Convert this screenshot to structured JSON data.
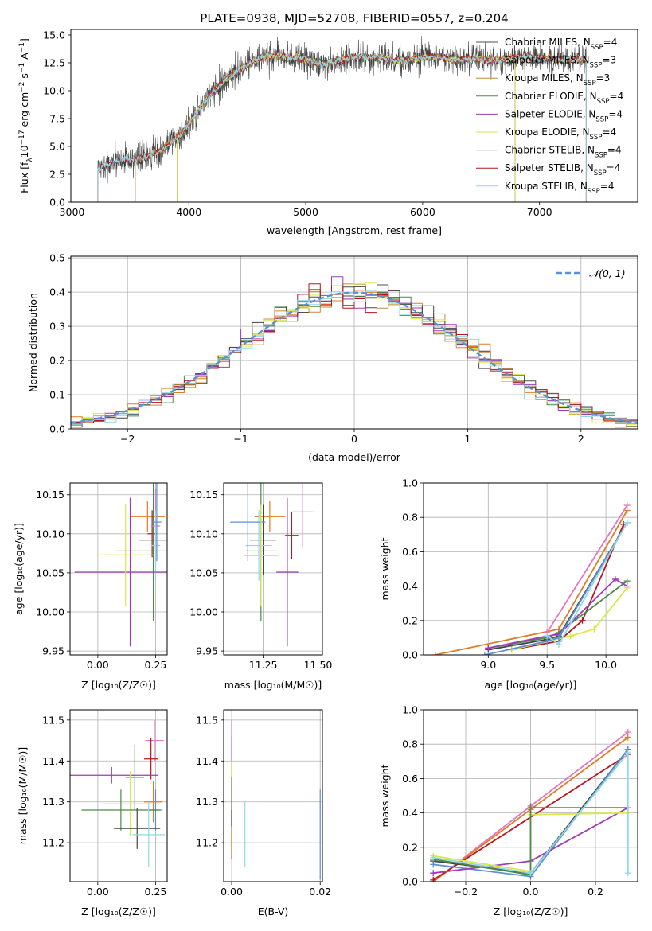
{
  "chart_data": [
    {
      "type": "line",
      "panel": "spectrum",
      "title": "PLATE=0938, MJD=52708, FIBERID=0557, z=0.204",
      "xlabel": "wavelength [Angstrom, rest frame]",
      "ylabel_parts": [
        "Flux [f",
        "λ",
        "10",
        "−17",
        " erg cm",
        "−2",
        " s",
        "−1",
        " A",
        "−1",
        "]"
      ],
      "xlim": [
        2990,
        7840
      ],
      "ylim": [
        0,
        15.5
      ],
      "xticks": [
        3000,
        4000,
        5000,
        6000,
        7000
      ],
      "yticks": [
        0.0,
        2.5,
        5.0,
        7.5,
        10.0,
        12.5,
        15.0
      ],
      "continuum": {
        "x": [
          3200,
          3250,
          3350,
          3450,
          3550,
          3650,
          3750,
          3850,
          3950,
          4050,
          4150,
          4250,
          4350,
          4450,
          4550,
          4650,
          4750,
          4850,
          4950,
          5050,
          5150,
          5250,
          5350,
          5450,
          5550,
          5650,
          5750,
          5850,
          5950,
          6050,
          6150,
          6250,
          6350,
          6450,
          6550,
          6650,
          6750,
          6850,
          6950,
          7050,
          7150,
          7250,
          7350,
          7450,
          7550
        ],
        "y": [
          2.5,
          3.2,
          3.6,
          3.9,
          3.8,
          4.1,
          4.6,
          5.4,
          6.3,
          7.8,
          9.2,
          10.4,
          11.3,
          12.0,
          12.6,
          13.1,
          13.2,
          13.0,
          12.9,
          12.6,
          12.4,
          12.6,
          12.9,
          13.1,
          13.0,
          13.0,
          12.7,
          12.7,
          12.9,
          13.0,
          13.0,
          12.8,
          12.8,
          12.9,
          12.7,
          12.7,
          12.9,
          13.0,
          13.0,
          12.9,
          12.8,
          12.8,
          12.8,
          12.8,
          12.9
        ]
      },
      "series": [
        {
          "name": "Chabrier MILES, N_SSP=4",
          "label": "Chabrier MILES, N",
          "sub": "SSP",
          "suffix": "=4",
          "color": "#4f4f4f",
          "x_start": 3540,
          "x_end": 7400
        },
        {
          "name": "Salpeter MILES, N_SSP=3",
          "label": "Salpeter MILES, N",
          "sub": "SSP",
          "suffix": "=3",
          "color": "#e07b20",
          "x_start": 3540,
          "x_end": 7400
        },
        {
          "name": "Kroupa MILES, N_SSP=3",
          "label": "Kroupa MILES, N",
          "sub": "SSP",
          "suffix": "=3",
          "color": "#c98a2f",
          "x_start": 3540,
          "x_end": 7400
        },
        {
          "name": "Chabrier ELODIE, N_SSP=4",
          "label": "Chabrier ELODIE, N",
          "sub": "SSP",
          "suffix": "=4",
          "color": "#4a8a4a",
          "x_start": 3900,
          "x_end": 6790
        },
        {
          "name": "Salpeter ELODIE, N_SSP=4",
          "label": "Salpeter ELODIE, N",
          "sub": "SSP",
          "suffix": "=4",
          "color": "#9d3cb5",
          "x_start": 3900,
          "x_end": 6790
        },
        {
          "name": "Kroupa ELODIE, N_SSP=4",
          "label": "Kroupa ELODIE, N",
          "sub": "SSP",
          "suffix": "=4",
          "color": "#d9e84a",
          "x_start": 3900,
          "x_end": 6790
        },
        {
          "name": "Chabrier STELIB, N_SSP=4",
          "label": "Chabrier STELIB, N",
          "sub": "SSP",
          "suffix": "=4",
          "color": "#444444",
          "x_start": 3220,
          "x_end": 7400
        },
        {
          "name": "Salpeter STELIB, N_SSP=4",
          "label": "Salpeter STELIB, N",
          "sub": "SSP",
          "suffix": "=4",
          "color": "#b8151c",
          "x_start": 3220,
          "x_end": 7400
        },
        {
          "name": "Kroupa STELIB, N_SSP=4",
          "label": "Kroupa STELIB, N",
          "sub": "SSP",
          "suffix": "=4",
          "color": "#8fd8e8",
          "x_start": 3220,
          "x_end": 7400
        }
      ],
      "legend": "top-right",
      "grid": false
    },
    {
      "type": "line",
      "panel": "residuals",
      "xlabel": "(data-model)/error",
      "ylabel": "Normed distribution",
      "xlim": [
        -2.5,
        2.5
      ],
      "ylim": [
        0,
        0.505
      ],
      "xticks": [
        -2,
        -1,
        0,
        1,
        2
      ],
      "yticks": [
        0.0,
        0.1,
        0.2,
        0.3,
        0.4,
        0.5
      ],
      "bin_width": 0.1,
      "gaussian": {
        "name": "𝒩(0, 1)",
        "color": "#5b8fd6",
        "style": "dashed"
      },
      "histogram_colors": [
        "#4f4f4f",
        "#e07b20",
        "#c98a2f",
        "#4a8a4a",
        "#9d3cb5",
        "#d9e84a",
        "#444444",
        "#b8151c",
        "#8fd8e8"
      ],
      "legend": "top-right",
      "grid": true
    },
    {
      "type": "scatter",
      "panel": "age-vs-Z",
      "xlabel": "Z [log₁₀(Z/Z☉)]",
      "ylabel": "age  [log₁₀(age/yr)]",
      "xlim": [
        -0.12,
        0.3
      ],
      "ylim": [
        9.945,
        10.165
      ],
      "xticks": [
        "0.00",
        "0.25"
      ],
      "yticks": [
        "9.95",
        "10.00",
        "10.05",
        "10.10",
        "10.15"
      ],
      "points": [
        {
          "x": 0.215,
          "y": 10.122,
          "xerr": 0.075,
          "yerr": 0.02,
          "color": "#e07b20"
        },
        {
          "x": 0.235,
          "y": 10.1,
          "xerr": 0.02,
          "yerr": 0.03,
          "color": "#b8151c"
        },
        {
          "x": 0.24,
          "y": 10.092,
          "xerr": 0.06,
          "yerr": 0.045,
          "color": "#444444"
        },
        {
          "x": 0.24,
          "y": 10.078,
          "xerr": 0.16,
          "yerr": 0.09,
          "color": "#4a8a4a"
        },
        {
          "x": 0.25,
          "y": 10.11,
          "xerr": 0.02,
          "yerr": 0.048,
          "color": "#e377c2"
        },
        {
          "x": 0.25,
          "y": 10.085,
          "xerr": 0.02,
          "yerr": 0.045,
          "color": "#8fd8e8"
        },
        {
          "x": 0.255,
          "y": 10.115,
          "xerr": 0.02,
          "yerr": 0.05,
          "color": "#5b8fd6"
        },
        {
          "x": 0.14,
          "y": 10.051,
          "xerr": 0.24,
          "yerr": 0.095,
          "color": "#9d3cb5"
        },
        {
          "x": 0.12,
          "y": 10.073,
          "xerr": 0.12,
          "yerr": 0.065,
          "color": "#d9e84a"
        }
      ]
    },
    {
      "type": "scatter",
      "panel": "age-vs-mass",
      "xlabel": "mass [log₁₀(M/M☉)]",
      "xlim": [
        11.07,
        11.52
      ],
      "ylim": [
        9.945,
        10.165
      ],
      "xticks": [
        "11.25",
        "11.50"
      ],
      "yticks": [
        "9.95",
        "10.00",
        "10.05",
        "10.10",
        "10.15"
      ],
      "points": [
        {
          "x": 11.28,
          "y": 10.122,
          "xerr": 0.07,
          "yerr": 0.02,
          "color": "#e07b20"
        },
        {
          "x": 11.38,
          "y": 10.098,
          "xerr": 0.03,
          "yerr": 0.03,
          "color": "#b8151c"
        },
        {
          "x": 11.25,
          "y": 10.092,
          "xerr": 0.06,
          "yerr": 0.045,
          "color": "#444444"
        },
        {
          "x": 11.24,
          "y": 10.078,
          "xerr": 0.07,
          "yerr": 0.09,
          "color": "#4a8a4a"
        },
        {
          "x": 11.43,
          "y": 10.128,
          "xerr": 0.05,
          "yerr": 0.045,
          "color": "#e377c2"
        },
        {
          "x": 11.23,
          "y": 10.085,
          "xerr": 0.06,
          "yerr": 0.045,
          "color": "#8fd8e8"
        },
        {
          "x": 11.18,
          "y": 10.115,
          "xerr": 0.08,
          "yerr": 0.05,
          "color": "#5b8fd6"
        },
        {
          "x": 11.36,
          "y": 10.051,
          "xerr": 0.05,
          "yerr": 0.095,
          "color": "#9d3cb5"
        },
        {
          "x": 11.24,
          "y": 10.072,
          "xerr": 0.08,
          "yerr": 0.065,
          "color": "#d9e84a"
        }
      ]
    },
    {
      "type": "line",
      "panel": "mass-weight-vs-age",
      "xlabel": "age  [log₁₀(age/yr)]",
      "ylabel": "mass weight",
      "xlim": [
        8.45,
        10.27
      ],
      "ylim": [
        0,
        1.0
      ],
      "xticks": [
        "9.0",
        "9.5",
        "10.0"
      ],
      "yticks": [
        "0.0",
        "0.2",
        "0.4",
        "0.6",
        "0.8",
        "1.0"
      ],
      "grid": true,
      "series": [
        {
          "color": "#e07b20",
          "x": [
            8.55,
            9.6,
            10.18
          ],
          "y": [
            0.0,
            0.15,
            0.84
          ]
        },
        {
          "color": "#b8151c",
          "x": [
            9.2,
            9.6,
            9.8,
            10.15
          ],
          "y": [
            0.03,
            0.08,
            0.2,
            0.76
          ]
        },
        {
          "color": "#444444",
          "x": [
            9.0,
            9.5,
            9.6,
            10.18
          ],
          "y": [
            0.03,
            0.09,
            0.11,
            0.77
          ]
        },
        {
          "color": "#4a8a4a",
          "x": [
            9.0,
            9.5,
            9.6,
            10.18
          ],
          "y": [
            0.04,
            0.1,
            0.13,
            0.43
          ]
        },
        {
          "color": "#9d3cb5",
          "x": [
            9.0,
            9.5,
            9.6,
            10.08,
            10.18
          ],
          "y": [
            0.04,
            0.11,
            0.12,
            0.44,
            0.4
          ]
        },
        {
          "color": "#d9e84a",
          "x": [
            9.2,
            9.7,
            9.9,
            10.18
          ],
          "y": [
            0.03,
            0.11,
            0.15,
            0.39
          ]
        },
        {
          "color": "#e377c2",
          "x": [
            9.5,
            10.18
          ],
          "y": [
            0.13,
            0.87
          ]
        },
        {
          "color": "#5b8fd6",
          "x": [
            8.97,
            9.5,
            9.6,
            10.18
          ],
          "y": [
            0.0,
            0.08,
            0.1,
            0.77
          ]
        },
        {
          "color": "#8fd8e8",
          "x": [
            9.5,
            9.6,
            10.18
          ],
          "y": [
            0.11,
            0.06,
            0.77
          ]
        }
      ]
    },
    {
      "type": "scatter",
      "panel": "mass-vs-Z",
      "xlabel": "Z [log₁₀(Z/Z☉)]",
      "ylabel": "mass [log₁₀(M/M☉)]",
      "xlim": [
        -0.12,
        0.3
      ],
      "ylim": [
        11.105,
        11.525
      ],
      "xticks": [
        "0.00",
        "0.25"
      ],
      "yticks": [
        "11.2",
        "11.3",
        "11.4",
        "11.5"
      ],
      "points": [
        {
          "x": 0.245,
          "y": 11.45,
          "xerr": 0.04,
          "yerr": 0.05,
          "color": "#e377c2"
        },
        {
          "x": 0.23,
          "y": 11.405,
          "xerr": 0.03,
          "yerr": 0.05,
          "color": "#b8151c"
        },
        {
          "x": 0.06,
          "y": 11.365,
          "xerr": 0.2,
          "yerr": 0.02,
          "color": "#9d3cb5"
        },
        {
          "x": 0.16,
          "y": 11.36,
          "xerr": 0.04,
          "yerr": 0.08,
          "color": "#4a8a4a"
        },
        {
          "x": 0.24,
          "y": 11.3,
          "xerr": 0.04,
          "yerr": 0.05,
          "color": "#e07b20"
        },
        {
          "x": 0.14,
          "y": 11.295,
          "xerr": 0.12,
          "yerr": 0.08,
          "color": "#d9e84a"
        },
        {
          "x": 0.25,
          "y": 11.28,
          "xerr": 0.03,
          "yerr": 0.05,
          "color": "#5b8fd6"
        },
        {
          "x": 0.1,
          "y": 11.28,
          "xerr": 0.17,
          "yerr": 0.05,
          "color": "#4a8a4a"
        },
        {
          "x": 0.17,
          "y": 11.235,
          "xerr": 0.1,
          "yerr": 0.05,
          "color": "#444444"
        },
        {
          "x": 0.22,
          "y": 11.22,
          "xerr": 0.07,
          "yerr": 0.08,
          "color": "#8fd8e8"
        }
      ]
    },
    {
      "type": "scatter",
      "panel": "mass-vs-EBV",
      "xlabel": "E(B-V)",
      "xlim": [
        -0.0018,
        0.0205
      ],
      "ylim": [
        11.105,
        11.525
      ],
      "xticks": [
        "0.00",
        "0.02"
      ],
      "yticks": [
        "11.2",
        "11.3",
        "11.4",
        "11.5"
      ],
      "points": [
        {
          "x": 0.0,
          "y": 11.41,
          "yerr": 0.05,
          "color": "#b8151c"
        },
        {
          "x": 0.0,
          "y": 11.45,
          "yerr": 0.05,
          "color": "#e377c2"
        },
        {
          "x": 0.0,
          "y": 11.34,
          "yerr": 0.06,
          "color": "#d9e84a"
        },
        {
          "x": 0.0,
          "y": 11.3,
          "yerr": 0.06,
          "color": "#4a8a4a"
        },
        {
          "x": 0.0,
          "y": 11.22,
          "yerr": 0.06,
          "color": "#444444"
        },
        {
          "x": 0.0,
          "y": 11.2,
          "yerr": 0.04,
          "color": "#e07b20"
        },
        {
          "x": 0.003,
          "y": 11.22,
          "yerr": 0.08,
          "color": "#8fd8e8"
        },
        {
          "x": 0.02,
          "y": 11.22,
          "yerr": 0.11,
          "color": "#5b8fd6"
        }
      ]
    },
    {
      "type": "line",
      "panel": "mass-weight-vs-Z",
      "xlabel": "Z [log₁₀(Z/Z☉)]",
      "ylabel": "mass weight",
      "xlim": [
        -0.33,
        0.33
      ],
      "ylim": [
        0,
        1.0
      ],
      "xticks": [
        "−0.2",
        "0.0",
        "0.2"
      ],
      "yticks": [
        "0.0",
        "0.2",
        "0.4",
        "0.6",
        "0.8",
        "1.0"
      ],
      "grid": true,
      "series": [
        {
          "color": "#e377c2",
          "x": [
            -0.3,
            0.0,
            0.3
          ],
          "y": [
            0.0,
            0.44,
            0.87
          ]
        },
        {
          "color": "#e07b20",
          "x": [
            -0.3,
            0.0,
            0.3
          ],
          "y": [
            0.0,
            0.42,
            0.84
          ]
        },
        {
          "color": "#b8151c",
          "x": [
            -0.3,
            0.3
          ],
          "y": [
            0.01,
            0.74
          ]
        },
        {
          "color": "#444444",
          "x": [
            -0.3,
            0.0,
            0.3
          ],
          "y": [
            0.12,
            0.05,
            0.77
          ]
        },
        {
          "color": "#5b8fd6",
          "x": [
            -0.3,
            0.0,
            0.3
          ],
          "y": [
            0.1,
            0.03,
            0.77
          ]
        },
        {
          "color": "#9d3cb5",
          "x": [
            -0.3,
            0.0,
            0.3
          ],
          "y": [
            0.05,
            0.12,
            0.43
          ]
        },
        {
          "color": "#d9e84a",
          "x": [
            -0.3,
            0.0,
            0.0,
            0.3
          ],
          "y": [
            0.15,
            0.06,
            0.39,
            0.4
          ]
        },
        {
          "color": "#4a8a4a",
          "x": [
            -0.3,
            0.0,
            0.0,
            0.3
          ],
          "y": [
            0.13,
            0.04,
            0.43,
            0.43
          ]
        },
        {
          "color": "#8fd8e8",
          "x": [
            -0.3,
            0.0,
            0.3,
            0.3
          ],
          "y": [
            0.14,
            0.05,
            0.75,
            0.05
          ]
        }
      ]
    }
  ]
}
